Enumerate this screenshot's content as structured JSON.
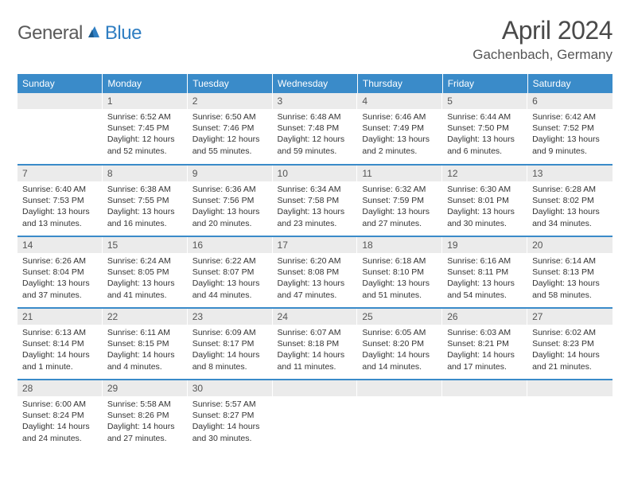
{
  "brand": {
    "part1": "General",
    "part2": "Blue"
  },
  "title": "April 2024",
  "location": "Gachenbach, Germany",
  "colors": {
    "header_bg": "#3a8bc9",
    "header_fg": "#ffffff",
    "daynum_bg": "#ebebeb",
    "row_divider": "#3a8bc9",
    "logo_accent": "#2f7ec2",
    "text": "#333333"
  },
  "fonts": {
    "title_size": 32,
    "location_size": 17,
    "header_size": 12,
    "body_size": 10.5
  },
  "weekdays": [
    "Sunday",
    "Monday",
    "Tuesday",
    "Wednesday",
    "Thursday",
    "Friday",
    "Saturday"
  ],
  "labels": {
    "sunrise": "Sunrise:",
    "sunset": "Sunset:",
    "daylight": "Daylight:"
  },
  "weeks": [
    [
      null,
      {
        "n": "1",
        "sunrise": "6:52 AM",
        "sunset": "7:45 PM",
        "daylight": "12 hours and 52 minutes."
      },
      {
        "n": "2",
        "sunrise": "6:50 AM",
        "sunset": "7:46 PM",
        "daylight": "12 hours and 55 minutes."
      },
      {
        "n": "3",
        "sunrise": "6:48 AM",
        "sunset": "7:48 PM",
        "daylight": "12 hours and 59 minutes."
      },
      {
        "n": "4",
        "sunrise": "6:46 AM",
        "sunset": "7:49 PM",
        "daylight": "13 hours and 2 minutes."
      },
      {
        "n": "5",
        "sunrise": "6:44 AM",
        "sunset": "7:50 PM",
        "daylight": "13 hours and 6 minutes."
      },
      {
        "n": "6",
        "sunrise": "6:42 AM",
        "sunset": "7:52 PM",
        "daylight": "13 hours and 9 minutes."
      }
    ],
    [
      {
        "n": "7",
        "sunrise": "6:40 AM",
        "sunset": "7:53 PM",
        "daylight": "13 hours and 13 minutes."
      },
      {
        "n": "8",
        "sunrise": "6:38 AM",
        "sunset": "7:55 PM",
        "daylight": "13 hours and 16 minutes."
      },
      {
        "n": "9",
        "sunrise": "6:36 AM",
        "sunset": "7:56 PM",
        "daylight": "13 hours and 20 minutes."
      },
      {
        "n": "10",
        "sunrise": "6:34 AM",
        "sunset": "7:58 PM",
        "daylight": "13 hours and 23 minutes."
      },
      {
        "n": "11",
        "sunrise": "6:32 AM",
        "sunset": "7:59 PM",
        "daylight": "13 hours and 27 minutes."
      },
      {
        "n": "12",
        "sunrise": "6:30 AM",
        "sunset": "8:01 PM",
        "daylight": "13 hours and 30 minutes."
      },
      {
        "n": "13",
        "sunrise": "6:28 AM",
        "sunset": "8:02 PM",
        "daylight": "13 hours and 34 minutes."
      }
    ],
    [
      {
        "n": "14",
        "sunrise": "6:26 AM",
        "sunset": "8:04 PM",
        "daylight": "13 hours and 37 minutes."
      },
      {
        "n": "15",
        "sunrise": "6:24 AM",
        "sunset": "8:05 PM",
        "daylight": "13 hours and 41 minutes."
      },
      {
        "n": "16",
        "sunrise": "6:22 AM",
        "sunset": "8:07 PM",
        "daylight": "13 hours and 44 minutes."
      },
      {
        "n": "17",
        "sunrise": "6:20 AM",
        "sunset": "8:08 PM",
        "daylight": "13 hours and 47 minutes."
      },
      {
        "n": "18",
        "sunrise": "6:18 AM",
        "sunset": "8:10 PM",
        "daylight": "13 hours and 51 minutes."
      },
      {
        "n": "19",
        "sunrise": "6:16 AM",
        "sunset": "8:11 PM",
        "daylight": "13 hours and 54 minutes."
      },
      {
        "n": "20",
        "sunrise": "6:14 AM",
        "sunset": "8:13 PM",
        "daylight": "13 hours and 58 minutes."
      }
    ],
    [
      {
        "n": "21",
        "sunrise": "6:13 AM",
        "sunset": "8:14 PM",
        "daylight": "14 hours and 1 minute."
      },
      {
        "n": "22",
        "sunrise": "6:11 AM",
        "sunset": "8:15 PM",
        "daylight": "14 hours and 4 minutes."
      },
      {
        "n": "23",
        "sunrise": "6:09 AM",
        "sunset": "8:17 PM",
        "daylight": "14 hours and 8 minutes."
      },
      {
        "n": "24",
        "sunrise": "6:07 AM",
        "sunset": "8:18 PM",
        "daylight": "14 hours and 11 minutes."
      },
      {
        "n": "25",
        "sunrise": "6:05 AM",
        "sunset": "8:20 PM",
        "daylight": "14 hours and 14 minutes."
      },
      {
        "n": "26",
        "sunrise": "6:03 AM",
        "sunset": "8:21 PM",
        "daylight": "14 hours and 17 minutes."
      },
      {
        "n": "27",
        "sunrise": "6:02 AM",
        "sunset": "8:23 PM",
        "daylight": "14 hours and 21 minutes."
      }
    ],
    [
      {
        "n": "28",
        "sunrise": "6:00 AM",
        "sunset": "8:24 PM",
        "daylight": "14 hours and 24 minutes."
      },
      {
        "n": "29",
        "sunrise": "5:58 AM",
        "sunset": "8:26 PM",
        "daylight": "14 hours and 27 minutes."
      },
      {
        "n": "30",
        "sunrise": "5:57 AM",
        "sunset": "8:27 PM",
        "daylight": "14 hours and 30 minutes."
      },
      null,
      null,
      null,
      null
    ]
  ]
}
